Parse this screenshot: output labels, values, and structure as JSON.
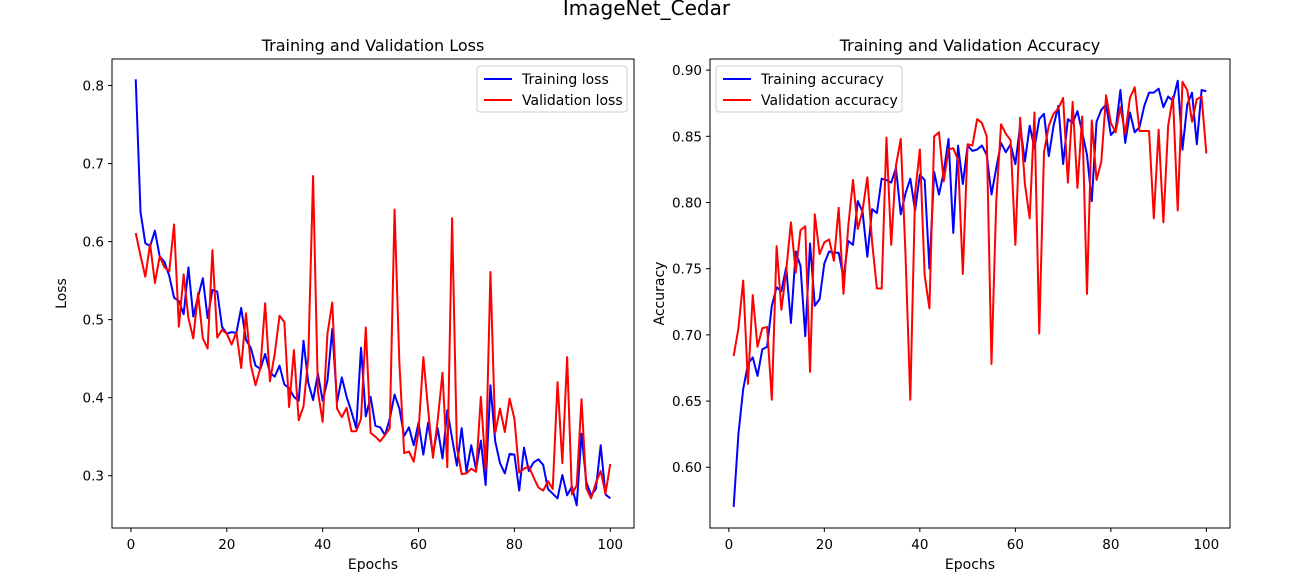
{
  "figure": {
    "suptitle": "ImageNet_Cedar"
  },
  "chart_data": [
    {
      "type": "line",
      "title": "Training and Validation Loss",
      "xlabel": "Epochs",
      "ylabel": "Loss",
      "xlim": [
        -3.95,
        104.95
      ],
      "ylim": [
        0.233,
        0.834
      ],
      "xticks": [
        0,
        20,
        40,
        60,
        80,
        100
      ],
      "yticks": [
        0.3,
        0.4,
        0.5,
        0.6,
        0.7,
        0.8
      ],
      "ytick_labels": [
        "0.3",
        "0.4",
        "0.5",
        "0.6",
        "0.7",
        "0.8"
      ],
      "grid": false,
      "legend_position": "upper right",
      "x": [
        1,
        2,
        3,
        4,
        5,
        6,
        7,
        8,
        9,
        10,
        11,
        12,
        13,
        14,
        15,
        16,
        17,
        18,
        19,
        20,
        21,
        22,
        23,
        24,
        25,
        26,
        27,
        28,
        29,
        30,
        31,
        32,
        33,
        34,
        35,
        36,
        37,
        38,
        39,
        40,
        41,
        42,
        43,
        44,
        45,
        46,
        47,
        48,
        49,
        50,
        51,
        52,
        53,
        54,
        55,
        56,
        57,
        58,
        59,
        60,
        61,
        62,
        63,
        64,
        65,
        66,
        67,
        68,
        69,
        70,
        71,
        72,
        73,
        74,
        75,
        76,
        77,
        78,
        79,
        80,
        81,
        82,
        83,
        84,
        85,
        86,
        87,
        88,
        89,
        90,
        91,
        92,
        93,
        94,
        95,
        96,
        97,
        98,
        99,
        100
      ],
      "series": [
        {
          "name": "Training loss",
          "color": "#0000ff",
          "values": [
            0.808,
            0.638,
            0.598,
            0.594,
            0.614,
            0.581,
            0.574,
            0.556,
            0.528,
            0.524,
            0.507,
            0.567,
            0.504,
            0.529,
            0.553,
            0.502,
            0.538,
            0.536,
            0.491,
            0.482,
            0.484,
            0.483,
            0.515,
            0.474,
            0.464,
            0.441,
            0.437,
            0.456,
            0.432,
            0.427,
            0.441,
            0.417,
            0.412,
            0.401,
            0.396,
            0.473,
            0.419,
            0.397,
            0.431,
            0.396,
            0.422,
            0.488,
            0.394,
            0.426,
            0.401,
            0.382,
            0.361,
            0.464,
            0.376,
            0.401,
            0.364,
            0.362,
            0.352,
            0.373,
            0.404,
            0.386,
            0.351,
            0.362,
            0.339,
            0.368,
            0.327,
            0.368,
            0.327,
            0.361,
            0.322,
            0.384,
            0.348,
            0.313,
            0.361,
            0.305,
            0.339,
            0.308,
            0.345,
            0.288,
            0.416,
            0.344,
            0.316,
            0.303,
            0.328,
            0.327,
            0.281,
            0.336,
            0.306,
            0.317,
            0.321,
            0.314,
            0.283,
            0.277,
            0.271,
            0.301,
            0.275,
            0.286,
            0.262,
            0.354,
            0.292,
            0.275,
            0.283,
            0.339,
            0.276,
            0.271
          ]
        },
        {
          "name": "Validation loss",
          "color": "#ff0000",
          "values": [
            0.611,
            0.582,
            0.555,
            0.597,
            0.547,
            0.581,
            0.567,
            0.562,
            0.622,
            0.491,
            0.558,
            0.502,
            0.476,
            0.534,
            0.476,
            0.463,
            0.589,
            0.477,
            0.487,
            0.482,
            0.468,
            0.484,
            0.438,
            0.508,
            0.442,
            0.416,
            0.438,
            0.521,
            0.421,
            0.456,
            0.505,
            0.497,
            0.388,
            0.461,
            0.371,
            0.389,
            0.451,
            0.684,
            0.408,
            0.369,
            0.482,
            0.522,
            0.386,
            0.375,
            0.387,
            0.357,
            0.357,
            0.373,
            0.49,
            0.355,
            0.35,
            0.344,
            0.352,
            0.361,
            0.641,
            0.445,
            0.329,
            0.331,
            0.318,
            0.357,
            0.452,
            0.385,
            0.323,
            0.371,
            0.432,
            0.311,
            0.63,
            0.336,
            0.302,
            0.303,
            0.309,
            0.305,
            0.401,
            0.308,
            0.561,
            0.355,
            0.386,
            0.356,
            0.399,
            0.373,
            0.304,
            0.309,
            0.312,
            0.298,
            0.285,
            0.281,
            0.293,
            0.283,
            0.42,
            0.316,
            0.452,
            0.276,
            0.288,
            0.398,
            0.284,
            0.271,
            0.291,
            0.306,
            0.277,
            0.315
          ]
        }
      ]
    },
    {
      "type": "line",
      "title": "Training and Validation Accuracy",
      "xlabel": "Epochs",
      "ylabel": "Accuracy",
      "xlim": [
        -3.95,
        104.95
      ],
      "ylim": [
        0.5541,
        0.9084
      ],
      "xticks": [
        0,
        20,
        40,
        60,
        80,
        100
      ],
      "yticks": [
        0.6,
        0.65,
        0.7,
        0.75,
        0.8,
        0.85,
        0.9
      ],
      "ytick_labels": [
        "0.60",
        "0.65",
        "0.70",
        "0.75",
        "0.80",
        "0.85",
        "0.90"
      ],
      "grid": false,
      "legend_position": "upper left",
      "x": [
        1,
        2,
        3,
        4,
        5,
        6,
        7,
        8,
        9,
        10,
        11,
        12,
        13,
        14,
        15,
        16,
        17,
        18,
        19,
        20,
        21,
        22,
        23,
        24,
        25,
        26,
        27,
        28,
        29,
        30,
        31,
        32,
        33,
        34,
        35,
        36,
        37,
        38,
        39,
        40,
        41,
        42,
        43,
        44,
        45,
        46,
        47,
        48,
        49,
        50,
        51,
        52,
        53,
        54,
        55,
        56,
        57,
        58,
        59,
        60,
        61,
        62,
        63,
        64,
        65,
        66,
        67,
        68,
        69,
        70,
        71,
        72,
        73,
        74,
        75,
        76,
        77,
        78,
        79,
        80,
        81,
        82,
        83,
        84,
        85,
        86,
        87,
        88,
        89,
        90,
        91,
        92,
        93,
        94,
        95,
        96,
        97,
        98,
        99,
        100
      ],
      "series": [
        {
          "name": "Training accuracy",
          "color": "#0000ff",
          "values": [
            0.57,
            0.625,
            0.659,
            0.678,
            0.683,
            0.669,
            0.689,
            0.691,
            0.722,
            0.736,
            0.733,
            0.751,
            0.709,
            0.763,
            0.752,
            0.699,
            0.769,
            0.722,
            0.727,
            0.754,
            0.763,
            0.762,
            0.762,
            0.743,
            0.771,
            0.768,
            0.801,
            0.793,
            0.759,
            0.795,
            0.792,
            0.818,
            0.817,
            0.815,
            0.826,
            0.791,
            0.807,
            0.818,
            0.794,
            0.821,
            0.817,
            0.75,
            0.823,
            0.806,
            0.823,
            0.848,
            0.777,
            0.843,
            0.814,
            0.843,
            0.839,
            0.84,
            0.843,
            0.836,
            0.806,
            0.826,
            0.845,
            0.838,
            0.844,
            0.829,
            0.858,
            0.831,
            0.858,
            0.841,
            0.863,
            0.867,
            0.835,
            0.858,
            0.873,
            0.829,
            0.863,
            0.86,
            0.869,
            0.853,
            0.836,
            0.801,
            0.861,
            0.87,
            0.874,
            0.851,
            0.855,
            0.885,
            0.845,
            0.868,
            0.853,
            0.857,
            0.873,
            0.883,
            0.883,
            0.886,
            0.872,
            0.88,
            0.877,
            0.892,
            0.84,
            0.874,
            0.883,
            0.844,
            0.885,
            0.884
          ]
        },
        {
          "name": "Validation accuracy",
          "color": "#ff0000",
          "values": [
            0.684,
            0.705,
            0.741,
            0.663,
            0.73,
            0.691,
            0.705,
            0.706,
            0.651,
            0.767,
            0.719,
            0.748,
            0.785,
            0.747,
            0.779,
            0.782,
            0.672,
            0.791,
            0.761,
            0.77,
            0.772,
            0.756,
            0.796,
            0.731,
            0.782,
            0.817,
            0.78,
            0.794,
            0.819,
            0.77,
            0.735,
            0.735,
            0.849,
            0.768,
            0.828,
            0.848,
            0.76,
            0.651,
            0.807,
            0.84,
            0.745,
            0.72,
            0.85,
            0.853,
            0.816,
            0.84,
            0.841,
            0.832,
            0.746,
            0.844,
            0.843,
            0.863,
            0.86,
            0.85,
            0.678,
            0.801,
            0.859,
            0.852,
            0.847,
            0.768,
            0.864,
            0.814,
            0.788,
            0.868,
            0.701,
            0.838,
            0.858,
            0.867,
            0.871,
            0.879,
            0.815,
            0.876,
            0.811,
            0.865,
            0.731,
            0.862,
            0.817,
            0.831,
            0.881,
            0.86,
            0.853,
            0.872,
            0.852,
            0.879,
            0.887,
            0.854,
            0.854,
            0.854,
            0.788,
            0.855,
            0.785,
            0.858,
            0.88,
            0.794,
            0.891,
            0.885,
            0.861,
            0.878,
            0.88,
            0.837
          ]
        }
      ]
    }
  ]
}
